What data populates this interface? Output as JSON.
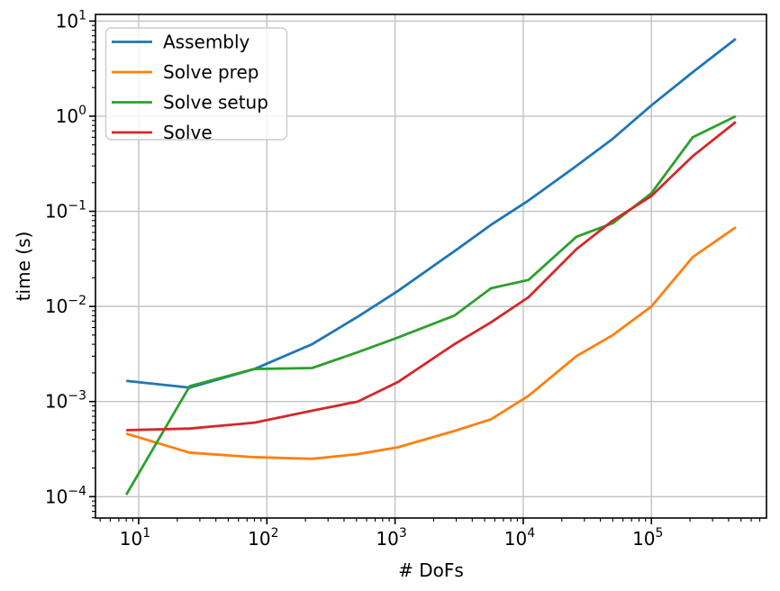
{
  "chart_data": {
    "type": "line",
    "title": "",
    "xlabel": "# DoFs",
    "ylabel": "time (s)",
    "x_scale": "log",
    "y_scale": "log",
    "xlim": [
      4.6,
      790000
    ],
    "ylim": [
      5.96e-05,
      11.75
    ],
    "x_tick_exponents": [
      1,
      2,
      3,
      4,
      5
    ],
    "y_tick_exponents": [
      1,
      0,
      -1,
      -2,
      -3,
      -4
    ],
    "grid": true,
    "legend_position": "upper-left",
    "colors": {
      "grid": "#c2c2c2",
      "spine": "#000000",
      "legend_border": "#cccccc",
      "legend_background": "#ffffff",
      "background": "#ffffff"
    },
    "x": [
      8,
      25,
      80,
      225,
      512,
      1050,
      2900,
      5600,
      11000,
      26000,
      50000,
      100000,
      210000,
      455000
    ],
    "series": [
      {
        "name": "Assembly",
        "color": "#1f77b4",
        "values": [
          0.00165,
          0.0014,
          0.0022,
          0.004,
          0.0078,
          0.0145,
          0.038,
          0.072,
          0.13,
          0.3,
          0.58,
          1.3,
          2.9,
          6.5
        ]
      },
      {
        "name": "Solve prep",
        "color": "#ff7f0e",
        "values": [
          0.00046,
          0.00029,
          0.00026,
          0.00025,
          0.00028,
          0.00033,
          0.00049,
          0.00065,
          0.00115,
          0.003,
          0.005,
          0.01,
          0.033,
          0.068
        ]
      },
      {
        "name": "Solve setup",
        "color": "#2ca02c",
        "values": [
          0.000105,
          0.00145,
          0.0022,
          0.00225,
          0.0033,
          0.0047,
          0.008,
          0.0155,
          0.019,
          0.054,
          0.075,
          0.155,
          0.6,
          1.0
        ]
      },
      {
        "name": "Solve",
        "color": "#d62728",
        "values": [
          0.0005,
          0.00052,
          0.0006,
          0.0008,
          0.001,
          0.0016,
          0.004,
          0.0068,
          0.0125,
          0.04,
          0.08,
          0.145,
          0.38,
          0.87
        ]
      }
    ]
  }
}
